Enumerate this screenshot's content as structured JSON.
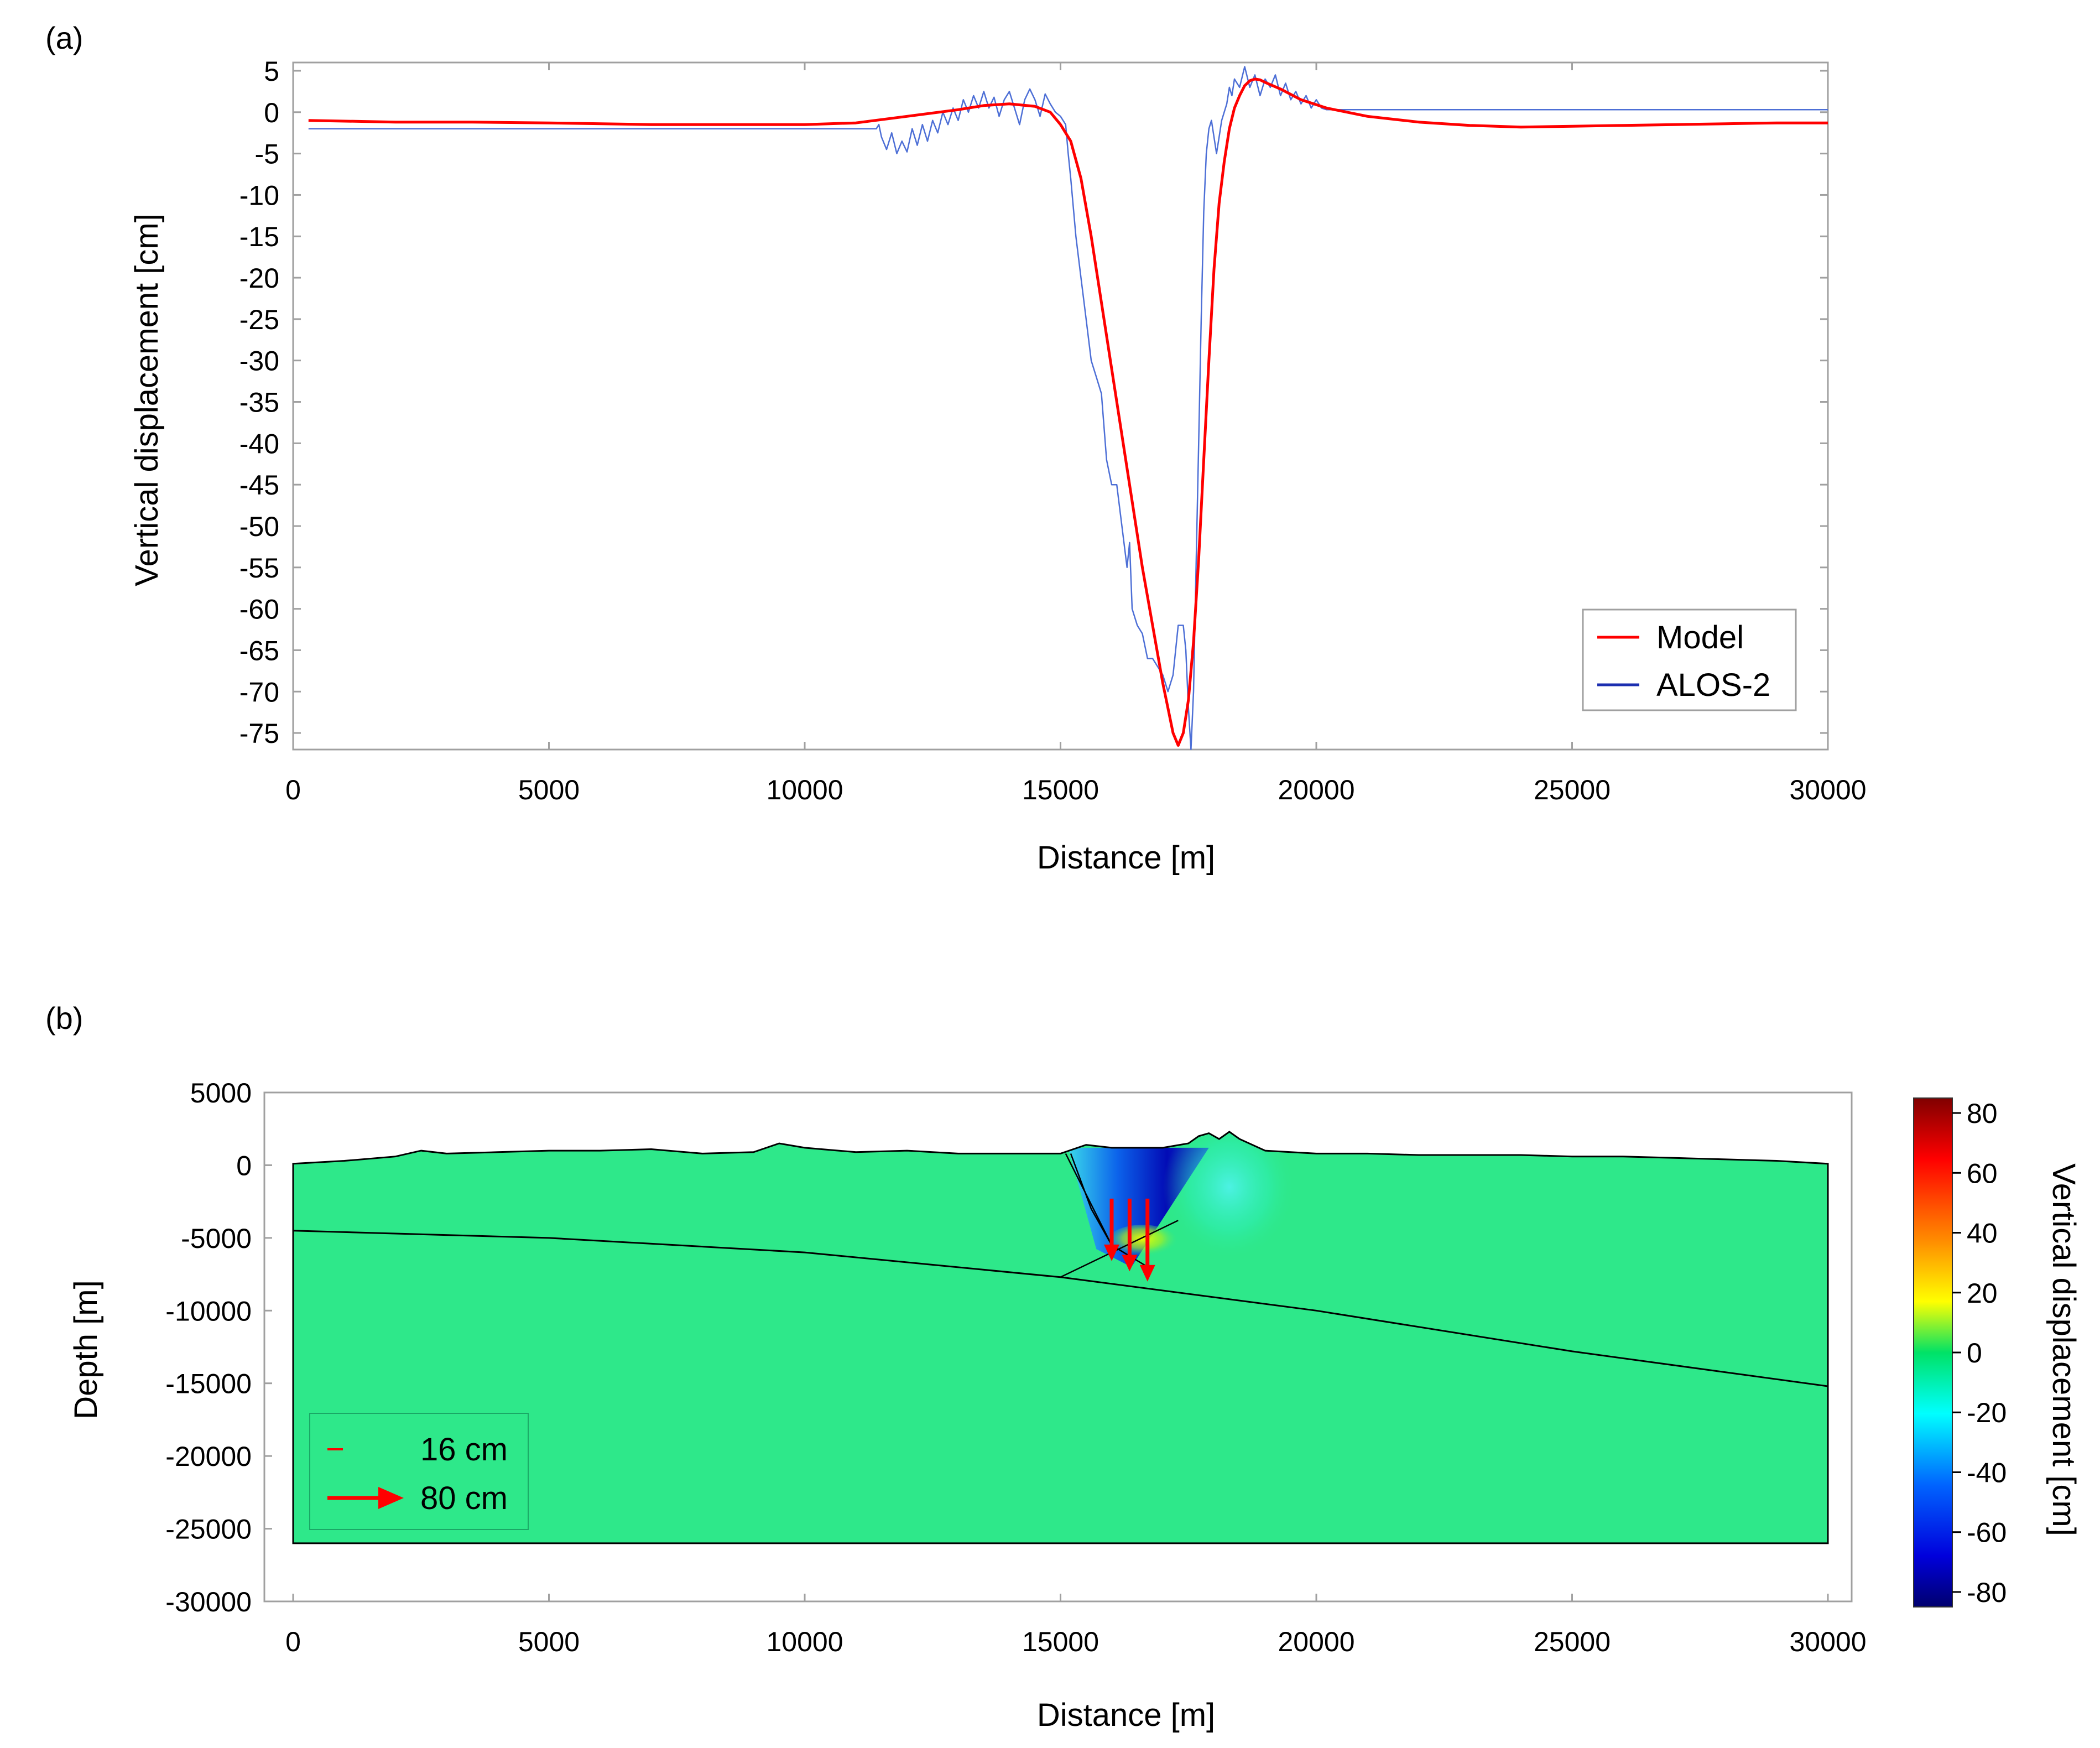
{
  "chart_data": [
    {
      "id": "a",
      "panel_label": "(a)",
      "type": "line",
      "xlabel": "Distance [m]",
      "ylabel": "Vertical displacement [cm]",
      "xlim": [
        0,
        30000
      ],
      "ylim": [
        -77,
        6
      ],
      "xticks": [
        0,
        5000,
        10000,
        15000,
        20000,
        25000,
        30000
      ],
      "yticks": [
        5,
        0,
        -5,
        -10,
        -15,
        -20,
        -25,
        -30,
        -35,
        -40,
        -45,
        -50,
        -55,
        -60,
        -65,
        -70,
        -75
      ],
      "legend": {
        "position": "bottom-right",
        "entries": [
          "Model",
          "ALOS-2"
        ]
      },
      "series": [
        {
          "name": "Model",
          "color": "#ff0000",
          "x": [
            300,
            2000,
            3500,
            5000,
            7000,
            9000,
            10000,
            11000,
            12000,
            13000,
            13500,
            14000,
            14500,
            14800,
            15000,
            15200,
            15400,
            15600,
            15800,
            16000,
            16200,
            16400,
            16600,
            16800,
            17000,
            17100,
            17200,
            17300,
            17400,
            17500,
            17600,
            17700,
            17800,
            17900,
            18000,
            18100,
            18200,
            18300,
            18400,
            18500,
            18600,
            18700,
            18800,
            18900,
            19000,
            19300,
            19700,
            20200,
            21000,
            22000,
            23000,
            24000,
            25000,
            26000,
            27000,
            28000,
            29000,
            30000
          ],
          "y": [
            -1,
            -1.2,
            -1.2,
            -1.3,
            -1.5,
            -1.5,
            -1.5,
            -1.3,
            -0.5,
            0.3,
            0.8,
            1.0,
            0.7,
            0,
            -1.5,
            -3.5,
            -8,
            -15,
            -23,
            -31,
            -39,
            -47,
            -55,
            -62,
            -69,
            -72,
            -75,
            -76.5,
            -75,
            -71,
            -64,
            -54,
            -42,
            -30,
            -19,
            -11,
            -6,
            -2,
            0.5,
            2,
            3.2,
            3.8,
            4,
            3.9,
            3.6,
            2.8,
            1.5,
            0.5,
            -0.5,
            -1.2,
            -1.6,
            -1.8,
            -1.7,
            -1.6,
            -1.5,
            -1.4,
            -1.3,
            -1.3
          ]
        },
        {
          "name": "ALOS-2",
          "color": "#4d6fd6",
          "x": [
            300,
            11400,
            11450,
            11500,
            11600,
            11700,
            11800,
            11900,
            12000,
            12100,
            12200,
            12300,
            12400,
            12500,
            12600,
            12700,
            12800,
            12900,
            13000,
            13100,
            13200,
            13300,
            13400,
            13500,
            13600,
            13700,
            13800,
            13900,
            14000,
            14100,
            14200,
            14300,
            14400,
            14500,
            14600,
            14700,
            14800,
            14900,
            15000,
            15100,
            15150,
            15200,
            15300,
            15400,
            15500,
            15600,
            15700,
            15800,
            15900,
            16000,
            16100,
            16200,
            16300,
            16350,
            16400,
            16500,
            16600,
            16700,
            16800,
            16900,
            17000,
            17100,
            17200,
            17300,
            17400,
            17450,
            17500,
            17550,
            17600,
            17650,
            17700,
            17750,
            17800,
            17850,
            17900,
            17950,
            18000,
            18050,
            18100,
            18150,
            18200,
            18250,
            18300,
            18350,
            18400,
            18500,
            18600,
            18700,
            18800,
            18900,
            19000,
            19100,
            19200,
            19300,
            19400,
            19500,
            19600,
            19700,
            19800,
            19900,
            20000,
            20100,
            20200,
            20300,
            30000
          ],
          "y": [
            -2,
            -2,
            -1.5,
            -3,
            -4.5,
            -2.5,
            -5,
            -3.5,
            -4.8,
            -2,
            -4,
            -1.5,
            -3.5,
            -1,
            -2.5,
            0,
            -1.5,
            0.5,
            -1,
            1.5,
            0,
            2,
            0.5,
            2.5,
            0.5,
            1.8,
            -0.5,
            1.5,
            2.5,
            0.5,
            -1.5,
            1.5,
            2.8,
            1.5,
            -0.5,
            2.2,
            1,
            0,
            -0.5,
            -1.5,
            -5,
            -8,
            -15,
            -20,
            -25,
            -30,
            -32,
            -34,
            -42,
            -45,
            -45,
            -50,
            -55,
            -52,
            -60,
            -62,
            -63,
            -66,
            -66,
            -67,
            -68,
            -70,
            -68,
            -62,
            -62,
            -65,
            -72,
            -77,
            -70,
            -55,
            -40,
            -25,
            -12,
            -5,
            -2,
            -1,
            -3,
            -5,
            -3,
            -1,
            0,
            1,
            3,
            2,
            4,
            3,
            5.5,
            3,
            4.5,
            2,
            4,
            3,
            4.5,
            2,
            3.5,
            1.5,
            2.5,
            1,
            2,
            0.5,
            1.5,
            0.5,
            0.3,
            0.3,
            0.3
          ]
        }
      ]
    },
    {
      "id": "b",
      "panel_label": "(b)",
      "type": "heatmap",
      "xlabel": "Distance [m]",
      "ylabel": "Depth [m]",
      "xlim": [
        0,
        30000
      ],
      "ylim": [
        -30000,
        5000
      ],
      "xticks": [
        0,
        5000,
        10000,
        15000,
        20000,
        25000,
        30000
      ],
      "yticks": [
        5000,
        0,
        -5000,
        -10000,
        -15000,
        -20000,
        -25000,
        -30000
      ],
      "colorbar": {
        "label": "Vertical displacement [cm]",
        "range": [
          -85,
          85
        ],
        "ticks": [
          80,
          60,
          40,
          20,
          0,
          -20,
          -40,
          -60,
          -80
        ]
      },
      "arrow_legend": [
        {
          "label": "16 cm",
          "length_cm": 16
        },
        {
          "label": "80 cm",
          "length_cm": 80
        }
      ],
      "topography": {
        "x": [
          0,
          1000,
          2000,
          2500,
          3000,
          4000,
          5000,
          6000,
          7000,
          8000,
          9000,
          9500,
          10000,
          11000,
          12000,
          13000,
          14000,
          15000,
          15500,
          16000,
          16500,
          17000,
          17500,
          17700,
          17900,
          18100,
          18300,
          18500,
          19000,
          20000,
          21000,
          22000,
          23000,
          24000,
          25000,
          26000,
          27000,
          28000,
          29000,
          30000
        ],
        "y": [
          100,
          300,
          600,
          1000,
          800,
          900,
          1000,
          1000,
          1100,
          800,
          900,
          1500,
          1200,
          900,
          1000,
          800,
          800,
          800,
          1400,
          1200,
          1200,
          1200,
          1500,
          2000,
          2200,
          1800,
          2300,
          1800,
          1000,
          800,
          800,
          700,
          700,
          700,
          600,
          600,
          500,
          400,
          300,
          100
        ]
      },
      "bottom_depth": -26000,
      "detachment": {
        "x": [
          0,
          5000,
          10000,
          15000,
          20000,
          25000,
          30000
        ],
        "y": [
          -4500,
          -5000,
          -6000,
          -7700,
          -10000,
          -12800,
          -15200
        ]
      },
      "ramp_lines": [
        {
          "x": [
            15100,
            16000,
            16800
          ],
          "y": [
            800,
            -5500,
            -7200
          ]
        },
        {
          "x": [
            15200,
            15600,
            16000
          ],
          "y": [
            800,
            -3000,
            -5500
          ]
        },
        {
          "x": [
            15000,
            17300
          ],
          "y": [
            -7700,
            -3800
          ]
        }
      ],
      "displacement_field": [
        {
          "shape": "wedge",
          "x": [
            15150,
            17900
          ],
          "top": 1200,
          "bottom": -7000,
          "value": -80
        },
        {
          "shape": "blob",
          "x": 18300,
          "y": -1500,
          "rx": 1300,
          "ry": 5000,
          "value": -30
        },
        {
          "shape": "blob",
          "x": 16600,
          "y": -5300,
          "rx": 700,
          "ry": 1200,
          "value": 25
        }
      ],
      "displacement_arrows": [
        {
          "x": 16000,
          "y": -2300,
          "dy": -4300
        },
        {
          "x": 16350,
          "y": -2300,
          "dy": -5000
        },
        {
          "x": 16700,
          "y": -2300,
          "dy": -5700
        }
      ]
    }
  ]
}
